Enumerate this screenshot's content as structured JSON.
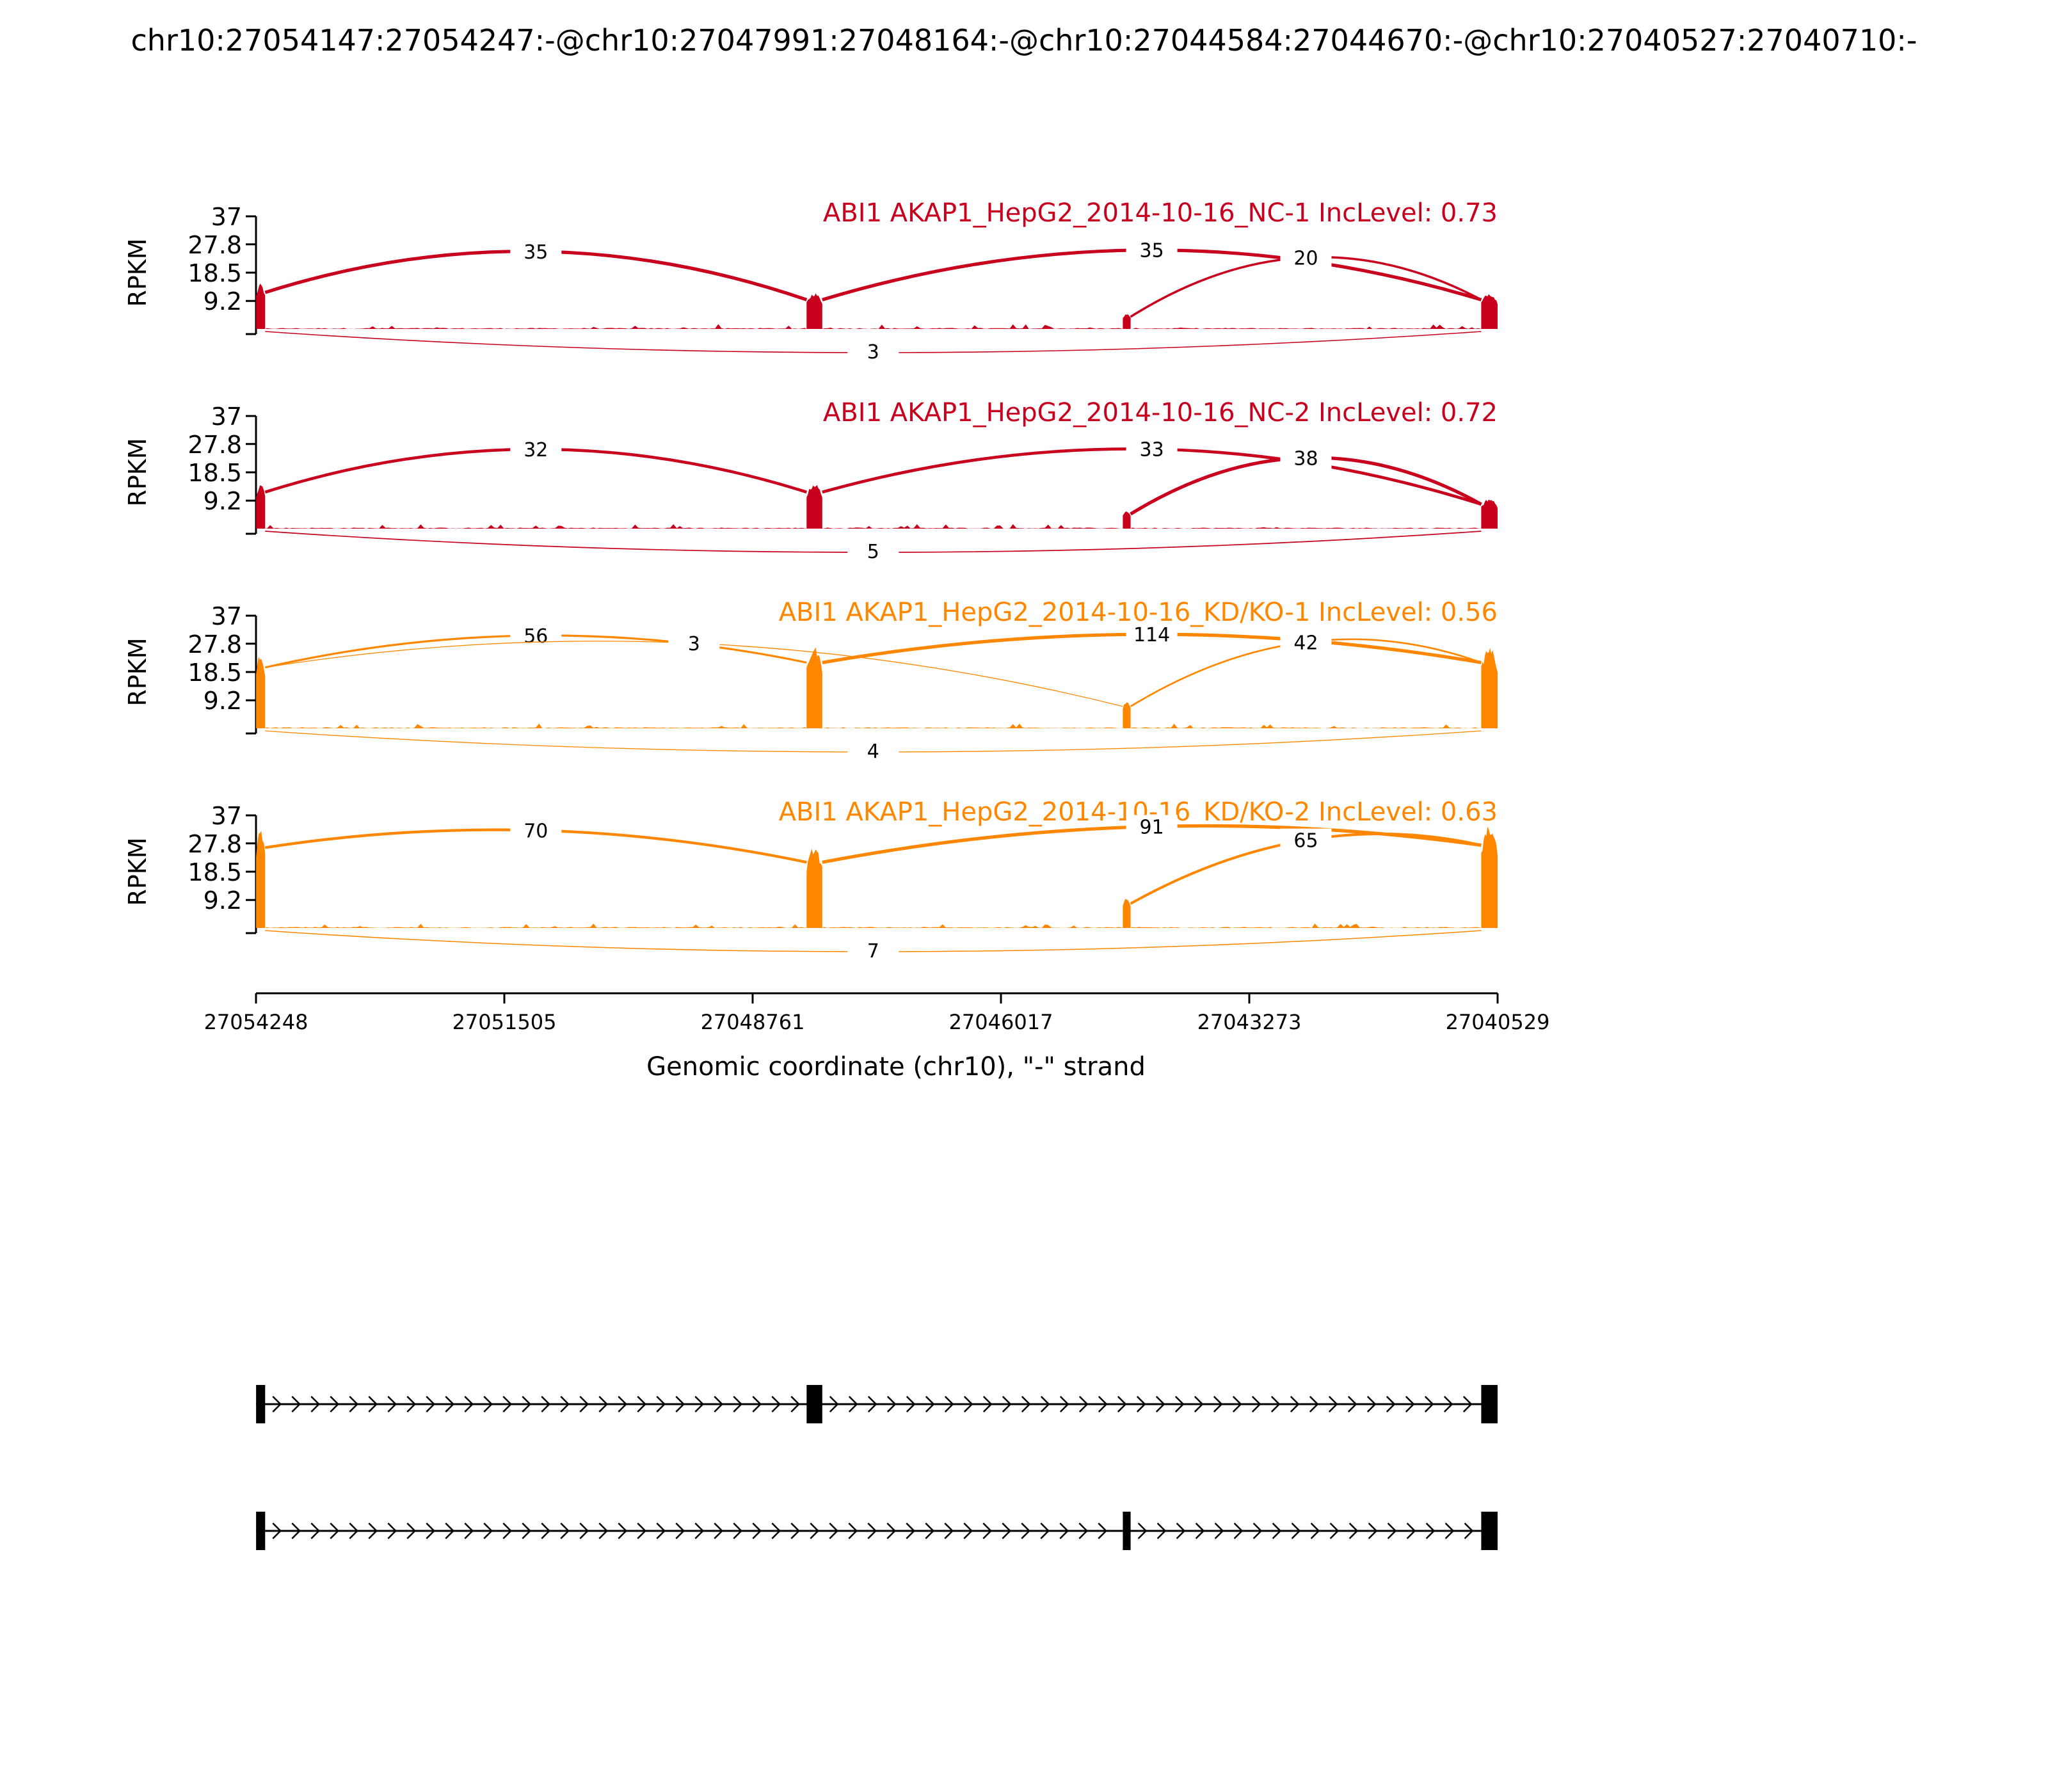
{
  "chart_data": {
    "type": "area",
    "title": "chr10:27054147:27054247:-@chr10:27047991:27048164:-@chr10:27044584:27044670:-@chr10:27040527:27040710:-",
    "xlabel": "Genomic coordinate (chr10), \"-\" strand",
    "ylabel": "RPKM",
    "xlim": [
      27054248,
      27040529
    ],
    "x_ticks": [
      "27054248",
      "27051505",
      "27048761",
      "27046017",
      "27043273",
      "27040529"
    ],
    "y_ticks": [
      "37",
      "27.8",
      "18.5",
      "9.2"
    ],
    "ylim": [
      0,
      37
    ],
    "exons": [
      {
        "start": 27054147,
        "end": 27054247
      },
      {
        "start": 27047991,
        "end": 27048164
      },
      {
        "start": 27044584,
        "end": 27044670
      },
      {
        "start": 27040527,
        "end": 27040710
      }
    ],
    "series": [
      {
        "name": "ABI1 AKAP1_HepG2_2014-10-16_NC-1 IncLevel: 0.73",
        "color": "#c8001e",
        "exon_peaks": [
          15,
          12,
          5,
          12
        ],
        "junctions": [
          {
            "from": 1,
            "to": 2,
            "count": 35,
            "side": "top"
          },
          {
            "from": 2,
            "to": 4,
            "count": 35,
            "side": "top"
          },
          {
            "from": 3,
            "to": 4,
            "count": 20,
            "side": "top"
          },
          {
            "from": 1,
            "to": 4,
            "count": 3,
            "side": "bottom"
          }
        ]
      },
      {
        "name": "ABI1 AKAP1_HepG2_2014-10-16_NC-2 IncLevel: 0.72",
        "color": "#c8001e",
        "exon_peaks": [
          15,
          15,
          6,
          10
        ],
        "junctions": [
          {
            "from": 1,
            "to": 2,
            "count": 32,
            "side": "top"
          },
          {
            "from": 2,
            "to": 4,
            "count": 33,
            "side": "top"
          },
          {
            "from": 3,
            "to": 4,
            "count": 38,
            "side": "top"
          },
          {
            "from": 1,
            "to": 4,
            "count": 5,
            "side": "bottom"
          }
        ]
      },
      {
        "name": "ABI1 AKAP1_HepG2_2014-10-16_KD/KO-1 IncLevel: 0.56",
        "color": "#ff8700",
        "exon_peaks": [
          25,
          27,
          9,
          27
        ],
        "junctions": [
          {
            "from": 1,
            "to": 2,
            "count": 56,
            "side": "top"
          },
          {
            "from": 1,
            "to": 3,
            "count": 3,
            "side": "top"
          },
          {
            "from": 2,
            "to": 4,
            "count": 114,
            "side": "top"
          },
          {
            "from": 3,
            "to": 4,
            "count": 42,
            "side": "top"
          },
          {
            "from": 1,
            "to": 4,
            "count": 4,
            "side": "bottom"
          }
        ]
      },
      {
        "name": "ABI1 AKAP1_HepG2_2014-10-16_KD/KO-2 IncLevel: 0.63",
        "color": "#ff8700",
        "exon_peaks": [
          33,
          27,
          10,
          34
        ],
        "junctions": [
          {
            "from": 1,
            "to": 2,
            "count": 70,
            "side": "top"
          },
          {
            "from": 2,
            "to": 4,
            "count": 91,
            "side": "top"
          },
          {
            "from": 3,
            "to": 4,
            "count": 65,
            "side": "top"
          },
          {
            "from": 1,
            "to": 4,
            "count": 7,
            "side": "bottom"
          }
        ]
      }
    ],
    "isoforms": [
      {
        "exons": [
          1,
          2,
          4
        ]
      },
      {
        "exons": [
          1,
          3,
          4
        ]
      }
    ]
  }
}
